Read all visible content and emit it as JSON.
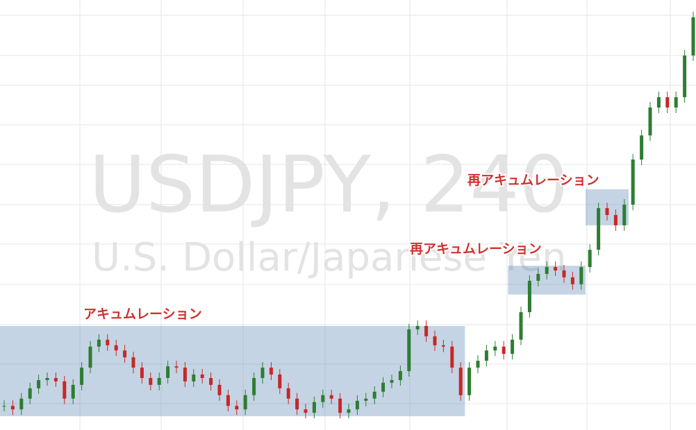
{
  "chart_data": {
    "type": "candlestick",
    "watermark_title": "USDJPY, 240",
    "watermark_subtitle": "U.S. Dollar/Japanese Yen",
    "ylim": [
      0,
      100
    ],
    "up_color": "#2e7d32",
    "down_color": "#c62828",
    "values": [
      5.6,
      4.8,
      7.3,
      9.7,
      11.6,
      12.1,
      11.3,
      7.3,
      10.5,
      14.5,
      19.4,
      21.0,
      19.7,
      18.5,
      16.9,
      14.5,
      12.1,
      10.5,
      12.1,
      14.8,
      14.5,
      11.3,
      12.9,
      12.1,
      10.5,
      8.1,
      5.6,
      4.8,
      8.1,
      12.1,
      14.5,
      12.9,
      9.7,
      7.3,
      4.8,
      4.0,
      6.5,
      8.1,
      7.3,
      4.0,
      4.8,
      6.8,
      7.3,
      8.9,
      11.0,
      11.6,
      13.7,
      23.4,
      24.2,
      21.8,
      19.7,
      19.4,
      14.5,
      8.1,
      14.5,
      16.1,
      18.5,
      19.4,
      17.7,
      21.0,
      27.4,
      34.7,
      36.3,
      37.9,
      37.1,
      35.5,
      33.9,
      37.9,
      41.9,
      51.6,
      50.0,
      47.6,
      52.4,
      62.9,
      68.5,
      75.0,
      77.4,
      75.0,
      77.4,
      87.1,
      96.0
    ],
    "annotations": [
      {
        "label": "アキュムレーション",
        "x": [
          0,
          53
        ],
        "y": [
          3.2,
          24.2
        ]
      },
      {
        "label": "再アキュムレーション",
        "x": [
          59,
          67
        ],
        "y": [
          31.5,
          38.2
        ]
      },
      {
        "label": "再アキュムレーション",
        "x": [
          68,
          72
        ],
        "y": [
          47.6,
          56.0
        ]
      }
    ]
  }
}
